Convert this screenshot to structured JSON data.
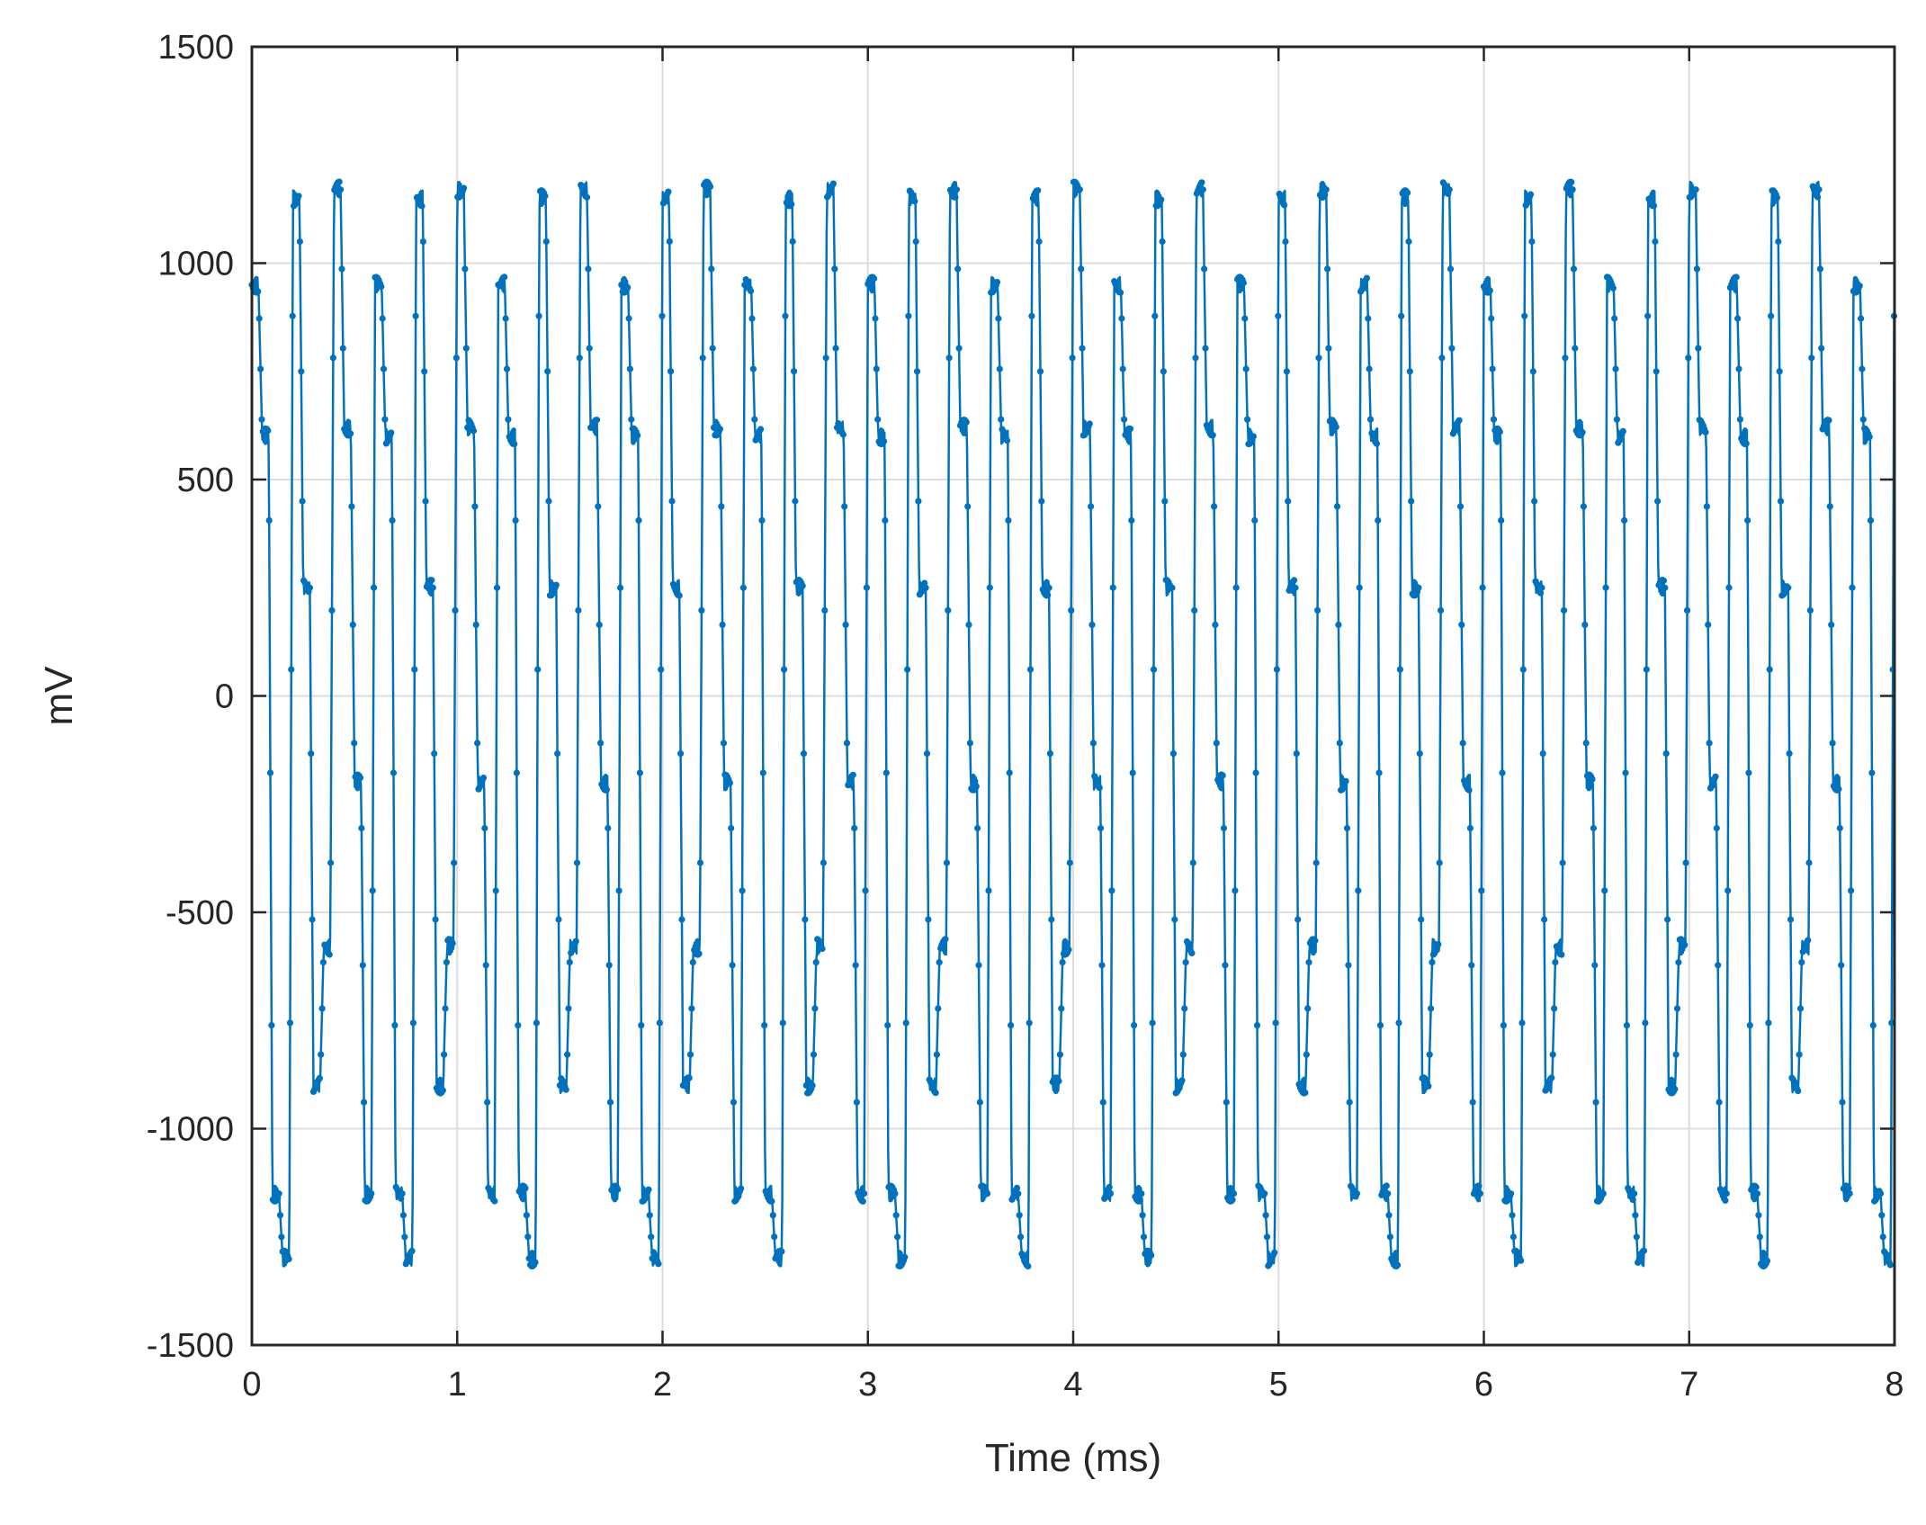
{
  "chart_data": {
    "type": "line",
    "title": "",
    "xlabel": "Time (ms)",
    "ylabel": "mV",
    "xlim": [
      0,
      8
    ],
    "ylim": [
      -1500,
      1500
    ],
    "x_ticks": [
      0,
      1,
      2,
      3,
      4,
      5,
      6,
      7,
      8
    ],
    "y_ticks": [
      -1500,
      -1000,
      -500,
      0,
      500,
      1000,
      1500
    ],
    "x_tick_labels": [
      "0",
      "1",
      "2",
      "3",
      "4",
      "5",
      "6",
      "7",
      "8"
    ],
    "y_tick_labels": [
      "-1500",
      "-1000",
      "-500",
      "0",
      "500",
      "1000",
      "1500"
    ],
    "grid": true,
    "marker": "dot",
    "colors": {
      "line": "#0072BD",
      "grid": "#DCDCDC",
      "axes": "#262626"
    },
    "series": [
      {
        "period_ms": 0.6,
        "levels_mV": [
          950,
          600,
          -1150,
          -1300,
          1150,
          250,
          -900,
          -580,
          1170,
          620,
          -200,
          -1150
        ],
        "dwell_ms": 0.032,
        "x_start": 0,
        "x_end": 8
      }
    ]
  }
}
